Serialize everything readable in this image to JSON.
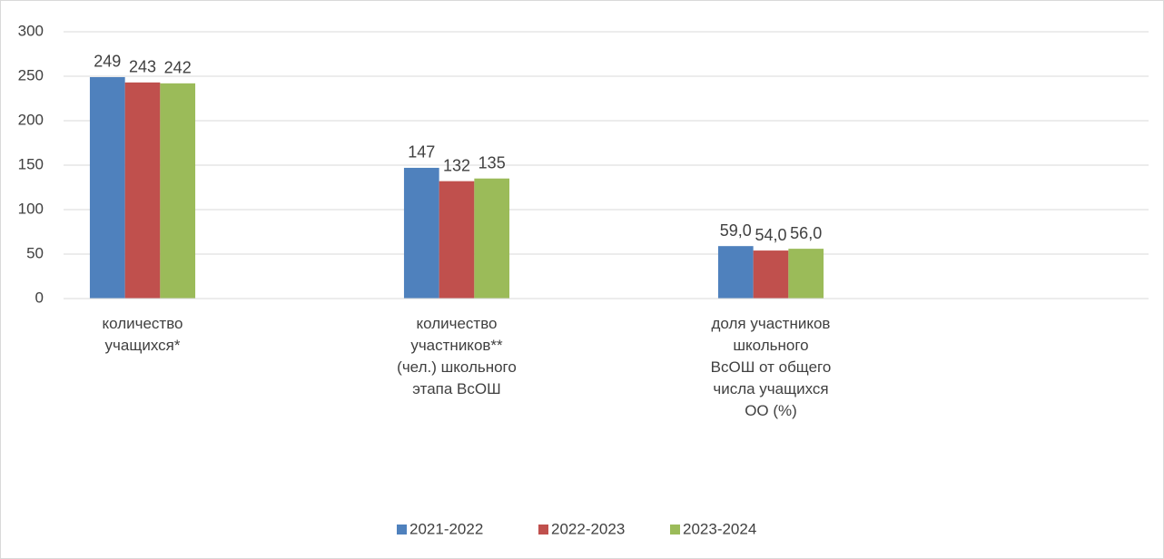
{
  "chart_data": {
    "type": "bar",
    "categories": [
      "количество\nучащихся*",
      "количество\nучастников**\n(чел.) школьного\nэтапа ВсОШ",
      "доля участников\nшкольного\nВсОШ от общего\nчисла учащихся\nОО (%)"
    ],
    "series": [
      {
        "name": "2021-2022",
        "color": "#4f81bd",
        "values": [
          249,
          147,
          59
        ],
        "value_labels": [
          "249",
          "147",
          "59,0"
        ]
      },
      {
        "name": "2022-2023",
        "color": "#c0504d",
        "values": [
          243,
          132,
          54
        ],
        "value_labels": [
          "243",
          "132",
          "54,0"
        ]
      },
      {
        "name": "2023-2024",
        "color": "#9bbb59",
        "values": [
          242,
          135,
          56
        ],
        "value_labels": [
          "242",
          "135",
          "56,0"
        ]
      }
    ],
    "ylim": [
      0,
      300
    ],
    "yticks": [
      0,
      50,
      100,
      150,
      200,
      250,
      300
    ],
    "grid": true,
    "legend": "bottom"
  }
}
